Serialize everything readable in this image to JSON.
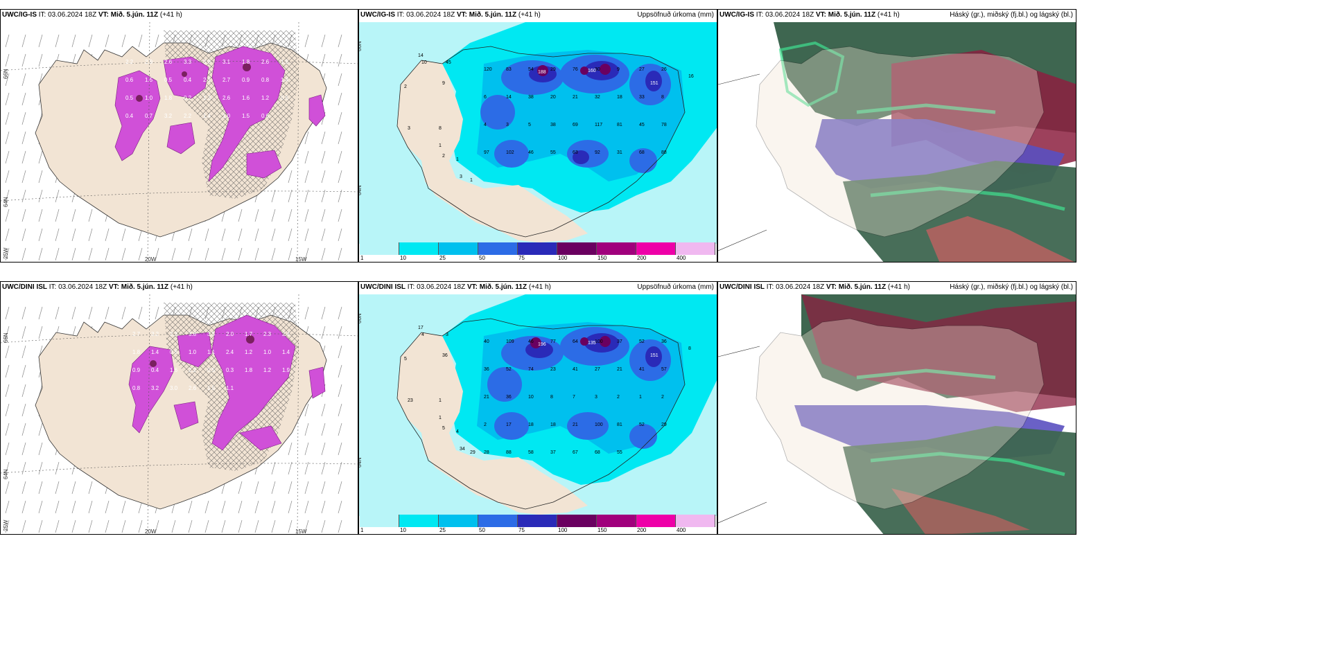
{
  "panels": {
    "r1c1": {
      "model": "UWC/IG-IS",
      "it": "IT: 03.06.2024 18Z",
      "vt_label": "VT:",
      "vt": "Mið. 5.jún. 11Z",
      "lead": "(+41 h)",
      "right_title": ""
    },
    "r1c2": {
      "model": "UWC/IG-IS",
      "it": "IT: 03.06.2024 18Z",
      "vt_label": "VT:",
      "vt": "Mið. 5.jún. 11Z",
      "lead": "(+41 h)",
      "right_title": "Uppsöfnuð úrkoma (mm)"
    },
    "r1c3": {
      "model": "UWC/IG-IS",
      "it": "IT: 03.06.2024 18Z",
      "vt_label": "VT:",
      "vt": "Mið. 5.jún. 11Z",
      "lead": "(+41 h)",
      "right_title": "Háský (gr.), miðský (fj.bl.) og lágský (bl.)"
    },
    "r2c1": {
      "model": "UWC/DINI ISL",
      "it": "IT: 03.06.2024 18Z",
      "vt_label": "VT:",
      "vt": "Mið. 5.jún. 11Z",
      "lead": "(+41 h)",
      "right_title": ""
    },
    "r2c2": {
      "model": "UWC/DINI ISL",
      "it": "IT: 03.06.2024 18Z",
      "vt_label": "VT:",
      "vt": "Mið. 5.jún. 11Z",
      "lead": "(+41 h)",
      "right_title": "Uppsöfnuð úrkoma (mm)"
    },
    "r2c3": {
      "model": "UWC/DINI ISL",
      "it": "IT: 03.06.2024 18Z",
      "vt_label": "VT:",
      "vt": "Mið. 5.jún. 11Z",
      "lead": "(+41 h)",
      "right_title": "Háský (gr.), miðský (fj.bl.) og lágský (bl.)"
    }
  },
  "grid_labels": {
    "lat_66": "66N",
    "lat_64": "64N",
    "lon_25": "25W",
    "lon_20": "20W",
    "lon_15": "15W"
  },
  "precip_legend": {
    "colors": [
      "#b8f5f8",
      "#00e8f2",
      "#00c0ee",
      "#2c6ce6",
      "#2a2ab8",
      "#6a0060",
      "#a0007c",
      "#ee00a8",
      "#f0b8f0"
    ],
    "labels": [
      "1",
      "10",
      "25",
      "50",
      "75",
      "100",
      "150",
      "200",
      "400"
    ]
  },
  "row1": {
    "precip_values_left": [
      "14",
      "10",
      "45",
      "9",
      "2",
      "3",
      "8",
      "1",
      "2",
      "1",
      "3",
      "1",
      "16"
    ],
    "precip_values_main": [
      "120",
      "83",
      "54",
      "29",
      "76",
      "30",
      "9",
      "27",
      "26",
      "6",
      "14",
      "38",
      "20",
      "21",
      "32",
      "18",
      "33",
      "8",
      "4",
      "3",
      "5",
      "38",
      "69",
      "117",
      "81",
      "45",
      "78",
      "97",
      "102",
      "46",
      "55",
      "63",
      "92",
      "31",
      "68",
      "88"
    ],
    "precip_max_labels": [
      "188",
      "160",
      "151"
    ],
    "qpf_values": [
      "2.2",
      "2.9",
      "2.6",
      "3.3",
      "3.8",
      "3.1",
      "1.8",
      "2.6",
      "1.5",
      "0.6",
      "1.5",
      "0.5",
      "0.4",
      "2.1",
      "2.7",
      "0.9",
      "0.8",
      "1.4",
      "0.5",
      "1.0",
      "1.8",
      "0.2",
      "1.3",
      "2.6",
      "1.6",
      "1.2",
      "0.5",
      "0.4",
      "0.7",
      "3.2",
      "2.2",
      "1.4",
      "1.0",
      "1.5",
      "0.6"
    ]
  },
  "row2": {
    "precip_values_left": [
      "17",
      "4",
      "3",
      "36",
      "5",
      "23",
      "1",
      "1",
      "5",
      "4",
      "34",
      "29",
      "8"
    ],
    "precip_values_main": [
      "40",
      "109",
      "46",
      "77",
      "64",
      "100",
      "37",
      "52",
      "36",
      "36",
      "52",
      "74",
      "23",
      "41",
      "27",
      "21",
      "41",
      "57",
      "21",
      "36",
      "10",
      "8",
      "7",
      "3",
      "2",
      "1",
      "2",
      "2",
      "17",
      "18",
      "18",
      "21",
      "100",
      "81",
      "52",
      "29",
      "28",
      "88",
      "58",
      "37",
      "67",
      "68",
      "55"
    ],
    "precip_max_labels": [
      "196",
      "135",
      "151"
    ],
    "qpf_values": [
      "2.7",
      "3.2",
      "2.3",
      "3.8",
      "3.5",
      "2.0",
      "1.7",
      "2.3",
      "2.4",
      "1.8",
      "1.4",
      "0.6",
      "1.0",
      "1.1",
      "2.4",
      "1.2",
      "1.0",
      "1.4",
      "0.9",
      "0.4",
      "1.6",
      "2.2",
      "0.5",
      "0.3",
      "1.8",
      "1.2",
      "1.9",
      "0.8",
      "3.2",
      "3.0",
      "2.6",
      "1.5",
      "1.1"
    ]
  },
  "cloud_legend": {
    "high": "Háský (gr.)",
    "mid": "miðský (fj.bl.)",
    "low": "lágský (bl.)"
  }
}
